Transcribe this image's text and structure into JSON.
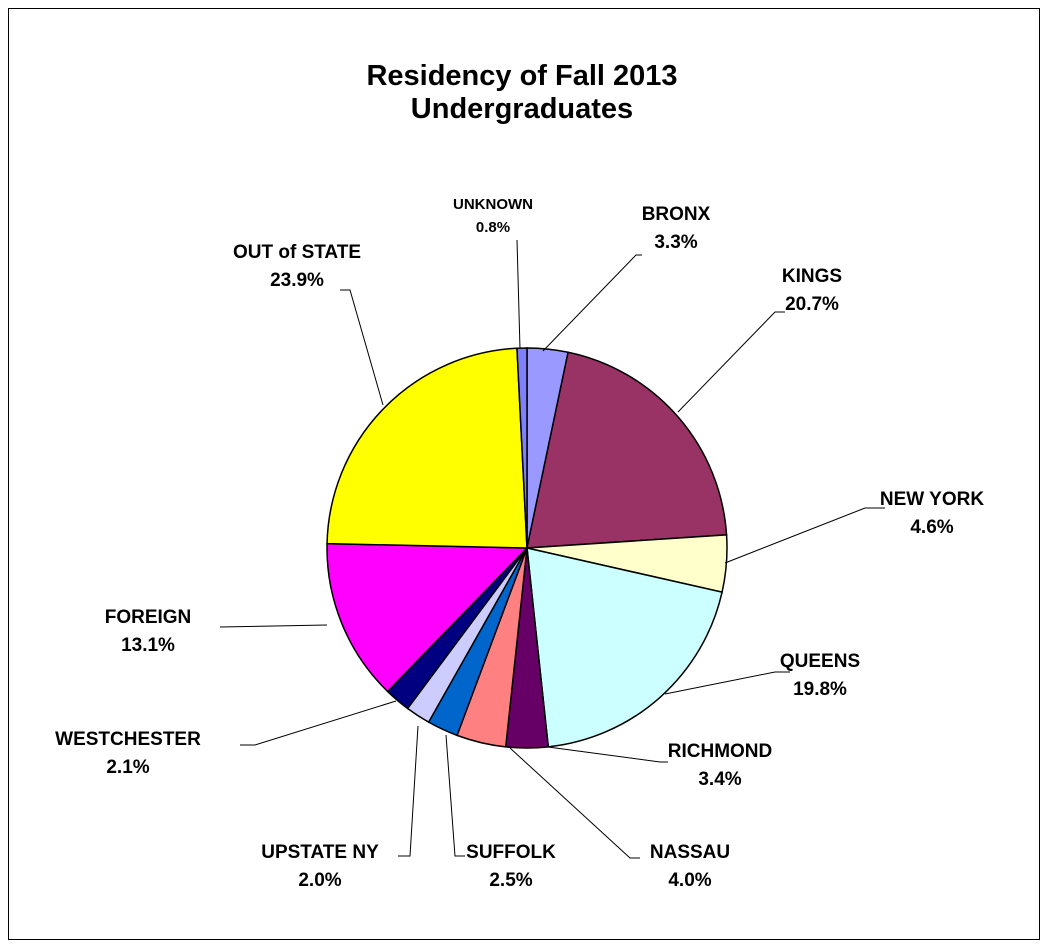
{
  "chart_data": {
    "type": "pie",
    "title": "Residency of Fall 2013 Undergraduates",
    "categories": [
      "BRONX",
      "KINGS",
      "NEW YORK",
      "QUEENS",
      "RICHMOND",
      "NASSAU",
      "SUFFOLK",
      "UPSTATE NY",
      "WESTCHESTER",
      "FOREIGN",
      "OUT of STATE",
      "UNKNOWN"
    ],
    "values": [
      3.3,
      20.7,
      4.6,
      19.8,
      3.4,
      4.0,
      2.5,
      2.0,
      2.1,
      13.1,
      23.9,
      0.8
    ],
    "value_labels": [
      "3.3%",
      "20.7%",
      "4.6%",
      "19.8%",
      "3.4%",
      "4.0%",
      "2.5%",
      "2.0%",
      "2.1%",
      "13.1%",
      "23.9%",
      "0.8%"
    ],
    "colors": [
      "#9999ff",
      "#993366",
      "#ffffcc",
      "#ccffff",
      "#660066",
      "#ff8080",
      "#0066cc",
      "#ccccff",
      "#000080",
      "#ff00ff",
      "#ffff00",
      "#8080ff"
    ],
    "start_angle": 0,
    "direction": "clockwise"
  }
}
